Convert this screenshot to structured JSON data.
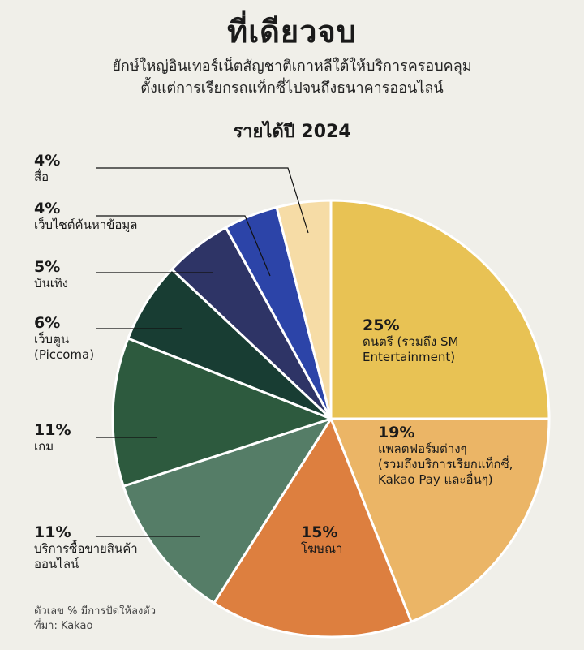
{
  "header": {
    "title": "ที่เดียวจบ",
    "subtitle_line1": "ยักษ์ใหญ่อินเทอร์เน็ตสัญชาติเกาหลีใต้ให้บริการครอบคลุม",
    "subtitle_line2": "ตั้งแต่การเรียกรถแท็กซี่ไปจนถึงธนาคารออนไลน์"
  },
  "chart_data": {
    "type": "pie",
    "title": "รายได้ปี 2024",
    "slices": [
      {
        "label": "ดนตรี (รวมถึง SM Entertainment)",
        "value": 25,
        "pct_label": "25%",
        "name_lines": [
          "ดนตรี (รวมถึง SM",
          "Entertainment)"
        ],
        "color": "#e8c254"
      },
      {
        "label": "แพลตฟอร์มต่างๆ (รวมถึงบริการเรียกแท็กซี่, Kakao Pay และอื่นๆ)",
        "value": 19,
        "pct_label": "19%",
        "name_lines": [
          "แพลตฟอร์มต่างๆ",
          "(รวมถึงบริการเรียกแท็กซี่,",
          "Kakao Pay และอื่นๆ)"
        ],
        "color": "#ebb566"
      },
      {
        "label": "โฆษณา",
        "value": 15,
        "pct_label": "15%",
        "name_lines": [
          "โฆษณา"
        ],
        "color": "#dd7f3f"
      },
      {
        "label": "บริการซื้อขายสินค้าออนไลน์",
        "value": 11,
        "pct_label": "11%",
        "name_lines": [
          "บริการซื้อขายสินค้า",
          "ออนไลน์"
        ],
        "color": "#557d67"
      },
      {
        "label": "เกม",
        "value": 11,
        "pct_label": "11%",
        "name_lines": [
          "เกม"
        ],
        "color": "#2d5a3e"
      },
      {
        "label": "เว็บตูน (Piccoma)",
        "value": 6,
        "pct_label": "6%",
        "name_lines": [
          "เว็บตูน",
          "(Piccoma)"
        ],
        "color": "#183d33"
      },
      {
        "label": "บันเทิง",
        "value": 5,
        "pct_label": "5%",
        "name_lines": [
          "บันเทิง"
        ],
        "color": "#2e3466"
      },
      {
        "label": "เว็บไซต์ค้นหาข้อมูล",
        "value": 4,
        "pct_label": "4%",
        "name_lines": [
          "เว็บไซต์ค้นหาข้อมูล"
        ],
        "color": "#2c44a8"
      },
      {
        "label": "สื่อ",
        "value": 4,
        "pct_label": "4%",
        "name_lines": [
          "สื่อ"
        ],
        "color": "#f6dca6"
      }
    ]
  },
  "footnote": {
    "line1": "ตัวเลข % มีการปัดให้ลงตัว",
    "line2": "ที่มา: Kakao"
  }
}
